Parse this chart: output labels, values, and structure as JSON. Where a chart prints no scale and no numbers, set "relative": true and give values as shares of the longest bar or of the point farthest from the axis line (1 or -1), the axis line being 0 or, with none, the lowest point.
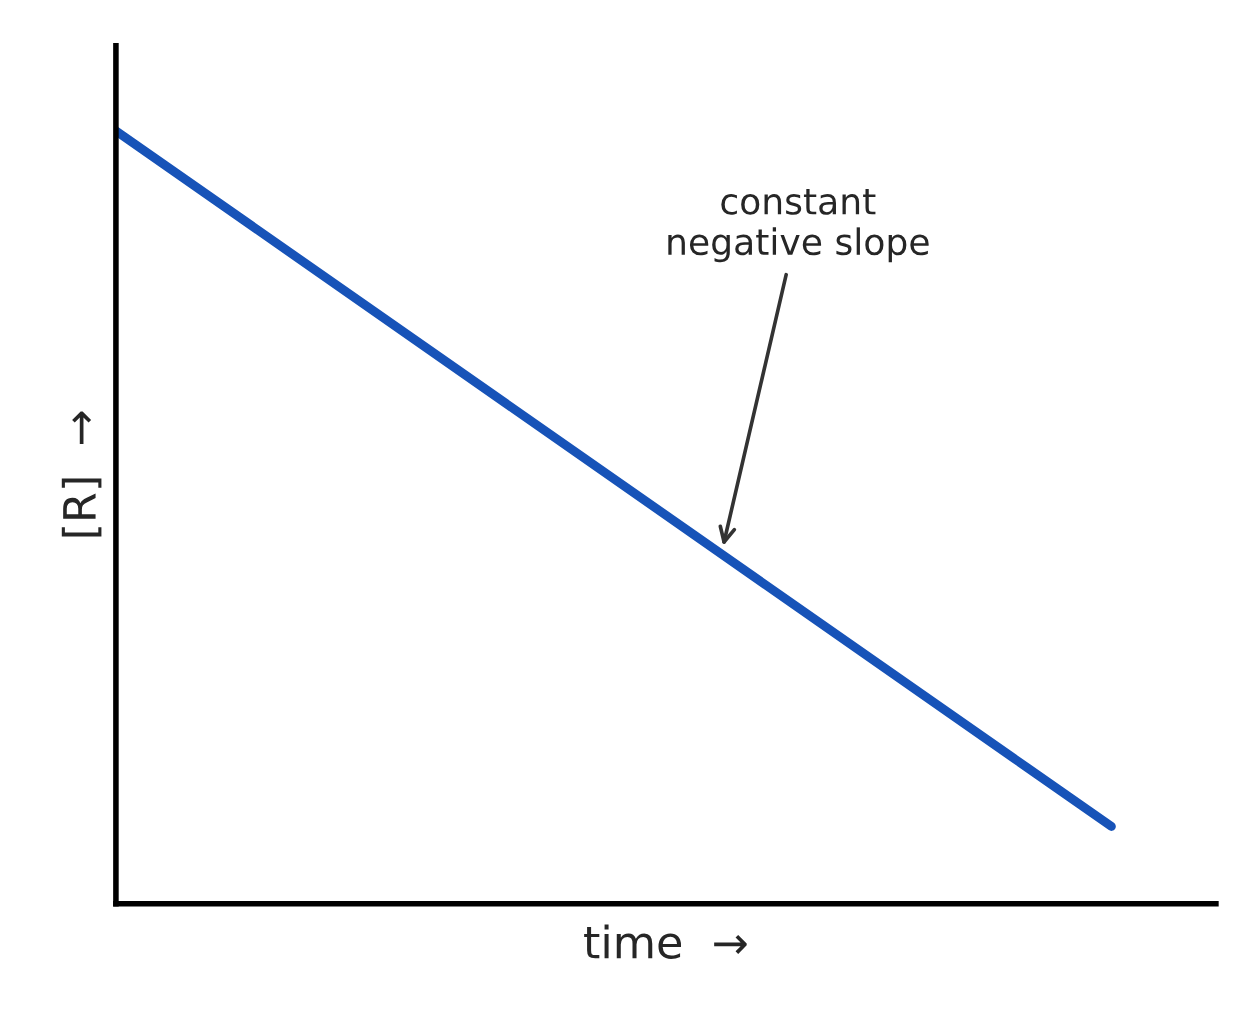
{
  "chart_data": {
    "type": "line",
    "relative": true,
    "xlabel": "time  →",
    "ylabel": "[R]  →",
    "categories": [
      null,
      null
    ],
    "series": [
      {
        "color": "#1753b8",
        "values": [
          1,
          0.1
        ]
      }
    ],
    "annotations": [
      "constant\nnegative slope"
    ],
    "grid": false,
    "legend": false,
    "marker": "none",
    "line_style": "solid"
  }
}
